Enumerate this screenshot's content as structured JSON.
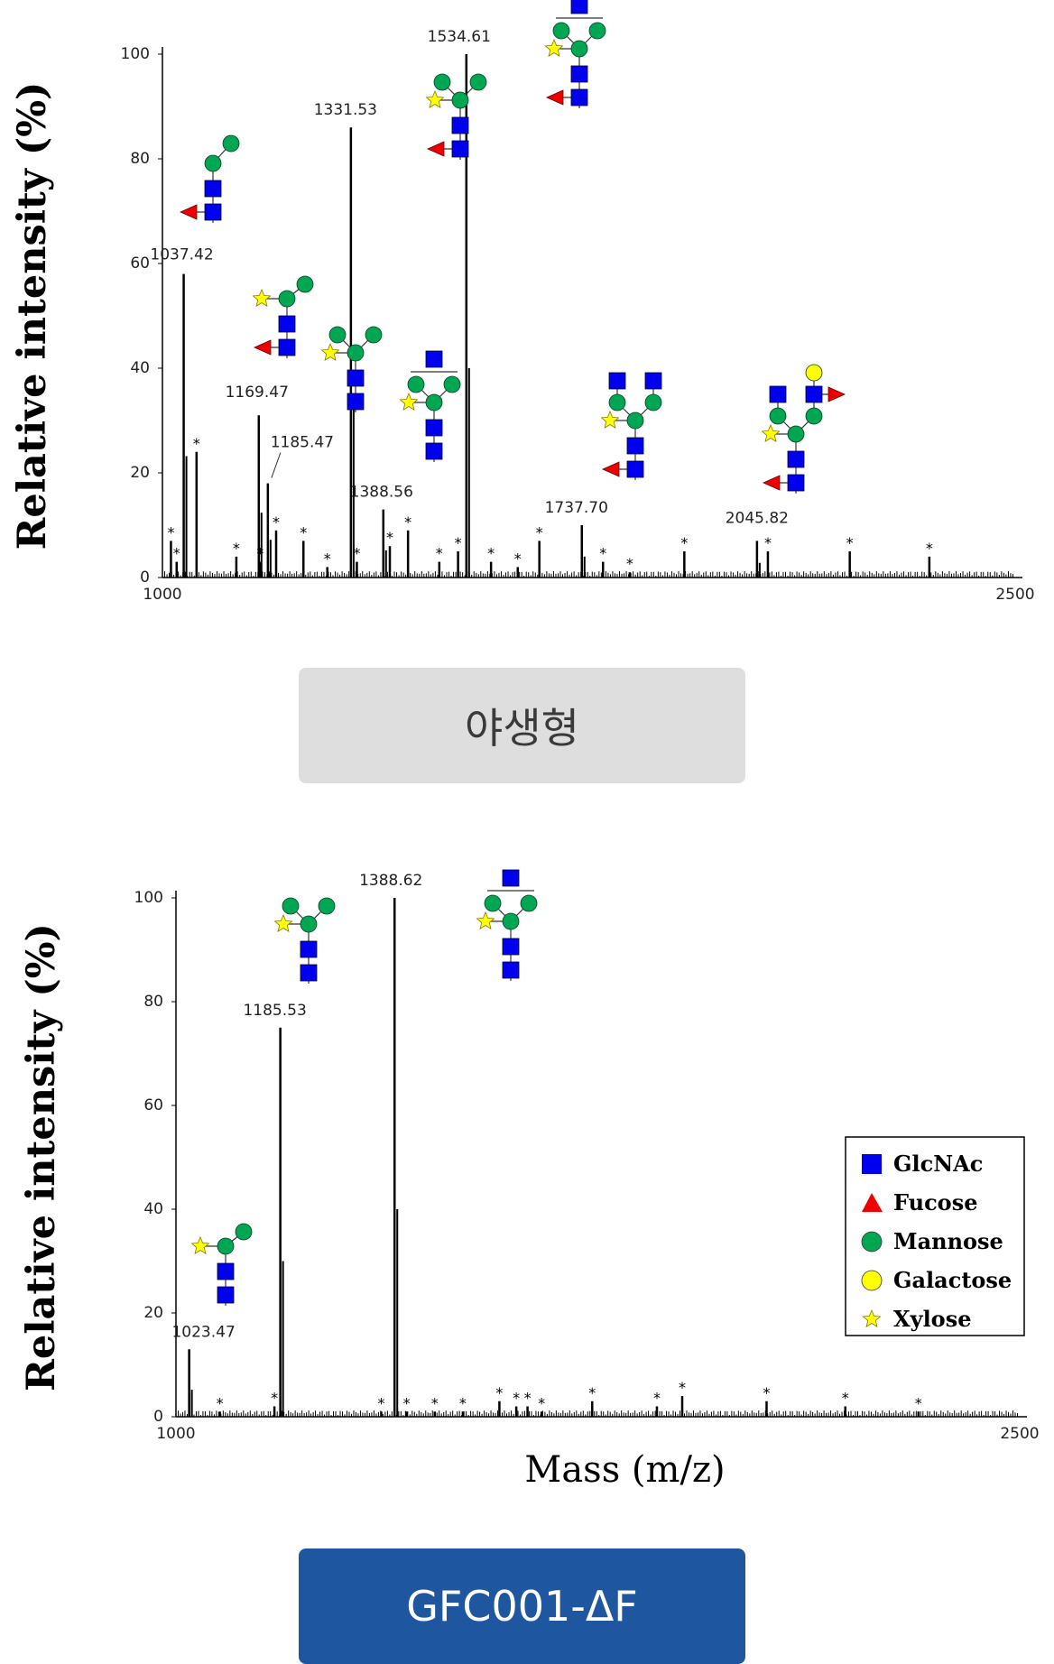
{
  "legend": {
    "items": [
      {
        "label": "GlcNAc",
        "symbol": "square",
        "color": "#0000ee"
      },
      {
        "label": "Fucose",
        "symbol": "triangle",
        "color": "#ee0000"
      },
      {
        "label": "Mannose",
        "symbol": "circle",
        "color": "#00a651"
      },
      {
        "label": "Galactose",
        "symbol": "circle",
        "color": "#ffff00"
      },
      {
        "label": "Xylose",
        "symbol": "star",
        "color": "#ffff00"
      }
    ]
  },
  "buttons": {
    "wild_type": "야생형",
    "gfc": "GFC001-ΔF"
  },
  "chart_data": [
    {
      "type": "bar",
      "title": "",
      "xlabel": "",
      "ylabel": "Relative intensity (%)",
      "xlim": [
        1000,
        2500
      ],
      "ylim": [
        0,
        100
      ],
      "x_ticks": [
        "1000",
        "2500"
      ],
      "y_ticks": [
        "0",
        "20",
        "40",
        "60",
        "80",
        "100"
      ],
      "peaks": [
        {
          "mz": 1037.42,
          "intensity": 58,
          "label": "1037.42"
        },
        {
          "mz": 1169.47,
          "intensity": 31,
          "label": "1169.47"
        },
        {
          "mz": 1185.47,
          "intensity": 18,
          "label": "1185.47"
        },
        {
          "mz": 1331.53,
          "intensity": 86,
          "label": "1331.53"
        },
        {
          "mz": 1388.56,
          "intensity": 13,
          "label": "1388.56"
        },
        {
          "mz": 1534.61,
          "intensity": 100,
          "label": "1534.61"
        },
        {
          "mz": 1737.7,
          "intensity": 10,
          "label": "1737.70"
        },
        {
          "mz": 2045.82,
          "intensity": 7,
          "label": "2045.82"
        }
      ],
      "minor_peaks": [
        {
          "mz": 1015,
          "intensity": 7
        },
        {
          "mz": 1025,
          "intensity": 3
        },
        {
          "mz": 1060,
          "intensity": 24
        },
        {
          "mz": 1130,
          "intensity": 4
        },
        {
          "mz": 1172,
          "intensity": 3
        },
        {
          "mz": 1200,
          "intensity": 9
        },
        {
          "mz": 1248,
          "intensity": 7
        },
        {
          "mz": 1290,
          "intensity": 2
        },
        {
          "mz": 1342,
          "intensity": 3
        },
        {
          "mz": 1400,
          "intensity": 6
        },
        {
          "mz": 1432,
          "intensity": 9
        },
        {
          "mz": 1487,
          "intensity": 3
        },
        {
          "mz": 1520,
          "intensity": 5
        },
        {
          "mz": 1578,
          "intensity": 3
        },
        {
          "mz": 1625,
          "intensity": 2
        },
        {
          "mz": 1663,
          "intensity": 7
        },
        {
          "mz": 1775,
          "intensity": 3
        },
        {
          "mz": 1822,
          "intensity": 1
        },
        {
          "mz": 1918,
          "intensity": 5
        },
        {
          "mz": 2065,
          "intensity": 5
        },
        {
          "mz": 2209,
          "intensity": 5
        },
        {
          "mz": 2349,
          "intensity": 4
        }
      ],
      "starred_peaks": [
        1015,
        1025,
        1060,
        1130,
        1172,
        1200,
        1248,
        1290,
        1342,
        1400,
        1432,
        1487,
        1520,
        1578,
        1625,
        1663,
        1775,
        1822,
        1918,
        2065,
        2209,
        2349
      ]
    },
    {
      "type": "bar",
      "title": "",
      "xlabel": "Mass (m/z)",
      "ylabel": "Relative intensity (%)",
      "xlim": [
        1000,
        2500
      ],
      "ylim": [
        0,
        100
      ],
      "x_ticks": [
        "1000",
        "2500"
      ],
      "y_ticks": [
        "0",
        "20",
        "40",
        "60",
        "80",
        "100"
      ],
      "peaks": [
        {
          "mz": 1023.47,
          "intensity": 13,
          "label": "1023.47"
        },
        {
          "mz": 1185.53,
          "intensity": 75,
          "label": "1185.53"
        },
        {
          "mz": 1388.62,
          "intensity": 100,
          "label": "1388.62"
        }
      ],
      "minor_peaks": [
        {
          "mz": 1078,
          "intensity": 1
        },
        {
          "mz": 1175,
          "intensity": 2
        },
        {
          "mz": 1365,
          "intensity": 1
        },
        {
          "mz": 1410,
          "intensity": 1
        },
        {
          "mz": 1460,
          "intensity": 1
        },
        {
          "mz": 1510,
          "intensity": 1
        },
        {
          "mz": 1575,
          "intensity": 3
        },
        {
          "mz": 1605,
          "intensity": 2
        },
        {
          "mz": 1625,
          "intensity": 2
        },
        {
          "mz": 1650,
          "intensity": 1
        },
        {
          "mz": 1740,
          "intensity": 3
        },
        {
          "mz": 1855,
          "intensity": 2
        },
        {
          "mz": 1900,
          "intensity": 4
        },
        {
          "mz": 2050,
          "intensity": 3
        },
        {
          "mz": 2190,
          "intensity": 2
        },
        {
          "mz": 2320,
          "intensity": 1
        }
      ],
      "starred_peaks": [
        1078,
        1175,
        1365,
        1410,
        1460,
        1510,
        1575,
        1605,
        1625,
        1650,
        1740,
        1855,
        1900,
        2050,
        2190,
        2320
      ]
    }
  ],
  "glycans": {
    "panel1": [
      {
        "for": "1037.42",
        "kind": "MM_F"
      },
      {
        "for": "1169.47",
        "kind": "MX_F"
      },
      {
        "for": "1185.47",
        "kind": "MMX"
      },
      {
        "for": "1331.53",
        "kind": "MMX_F"
      },
      {
        "for": "1388.56",
        "kind": "GnMX"
      },
      {
        "for": "1534.61",
        "kind": "GnMX_F"
      },
      {
        "for": "1737.70",
        "kind": "GnGnX_F"
      },
      {
        "for": "2045.82",
        "kind": "GalFGnX_F"
      }
    ],
    "panel2": [
      {
        "for": "1023.47",
        "kind": "MX"
      },
      {
        "for": "1185.53",
        "kind": "MMX"
      },
      {
        "for": "1388.62",
        "kind": "GnMX"
      }
    ]
  }
}
